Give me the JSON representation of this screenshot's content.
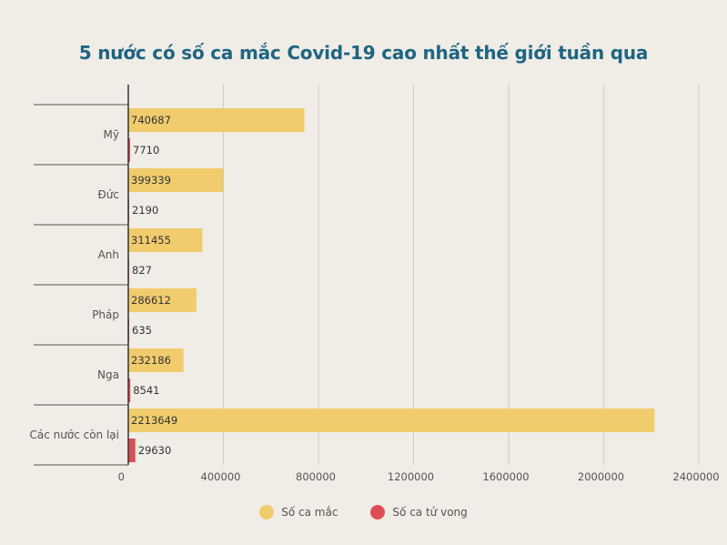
{
  "chart_data": {
    "type": "bar",
    "orientation": "horizontal",
    "title": "5 nước có số ca mắc Covid-19 cao nhất thế giới tuần qua",
    "categories": [
      "Mỹ",
      "Đức",
      "Anh",
      "Pháp",
      "Nga",
      "Các nước còn lại"
    ],
    "series": [
      {
        "name": "Số ca mắc",
        "color": "#f0cc6c",
        "values": [
          740687,
          399339,
          311455,
          286612,
          232186,
          2213649
        ]
      },
      {
        "name": "Số ca tử vong",
        "color": "#dc4e55",
        "values": [
          7710,
          2190,
          827,
          635,
          8541,
          29630
        ]
      }
    ],
    "xticks": [
      "0",
      "400000",
      "800000",
      "1200000",
      "1600000",
      "2000000",
      "2400000"
    ],
    "xlim": [
      0,
      2400000
    ],
    "grid": true,
    "legend_position": "bottom"
  }
}
